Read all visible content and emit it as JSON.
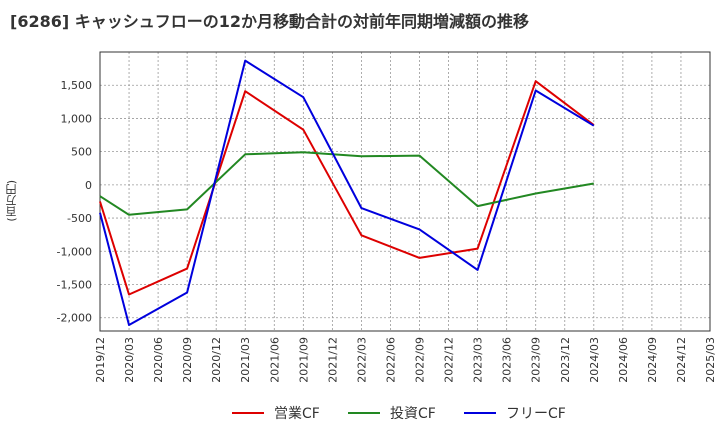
{
  "chart_data": {
    "type": "line",
    "title": "[6286]  キャッシュフローの12か月移動合計の対前年同期増減額の推移",
    "ylabel": "(百万円)",
    "xlabel": "",
    "categories": [
      "2019/12",
      "2020/03",
      "2020/06",
      "2020/09",
      "2020/12",
      "2021/03",
      "2021/06",
      "2021/09",
      "2021/12",
      "2022/03",
      "2022/06",
      "2022/09",
      "2022/12",
      "2023/03",
      "2023/06",
      "2023/09",
      "2023/12",
      "2024/03",
      "2024/06",
      "2024/09",
      "2024/12",
      "2025/03"
    ],
    "ylim": [
      -2200,
      2000
    ],
    "yticks": [
      -2000,
      -1500,
      -1000,
      -500,
      0,
      500,
      1000,
      1500
    ],
    "ytick_labels": [
      "-2,000",
      "-1,500",
      "-1,000",
      "-500",
      "0",
      "500",
      "1,000",
      "1,500"
    ],
    "grid": true,
    "series": [
      {
        "name": "営業CF",
        "color": "#dd0000",
        "values": [
          -250,
          -1650,
          null,
          -1260,
          null,
          1410,
          null,
          830,
          null,
          -760,
          null,
          -1100,
          null,
          -960,
          null,
          1560,
          null,
          900,
          null,
          null,
          null,
          null
        ]
      },
      {
        "name": "投資CF",
        "color": "#228822",
        "values": [
          -170,
          -450,
          null,
          -370,
          null,
          460,
          null,
          490,
          null,
          430,
          null,
          440,
          null,
          -320,
          null,
          -130,
          null,
          20,
          null,
          null,
          null,
          null
        ]
      },
      {
        "name": "フリーCF",
        "color": "#0000dd",
        "values": [
          -420,
          -2110,
          null,
          -1620,
          null,
          1870,
          null,
          1320,
          null,
          -350,
          null,
          -670,
          null,
          -1280,
          null,
          1420,
          null,
          890,
          null,
          null,
          null,
          null
        ]
      }
    ]
  }
}
